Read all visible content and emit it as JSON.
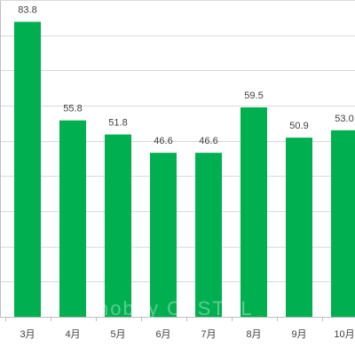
{
  "chart_data": {
    "type": "bar",
    "categories": [
      "3月",
      "4月",
      "5月",
      "6月",
      "7月",
      "8月",
      "9月",
      "10月"
    ],
    "values": [
      83.8,
      55.8,
      51.8,
      46.6,
      46.6,
      59.5,
      50.9,
      53.0
    ],
    "data_labels": [
      "83.8",
      "55.8",
      "51.8",
      "46.6",
      "46.6",
      "59.5",
      "50.9",
      "53.0"
    ],
    "ylim": [
      0,
      90
    ],
    "grid": true,
    "title": "",
    "xlabel": "",
    "ylabel": "",
    "bar_color": "#00B050",
    "grid_color": "#d9d9d9",
    "axis_color": "#bfbfbf"
  },
  "watermark": "hobby CASTEL"
}
